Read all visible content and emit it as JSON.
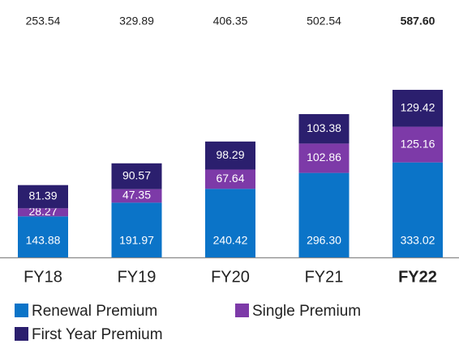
{
  "chart_data": {
    "type": "stacked_bar",
    "categories": [
      "FY18",
      "FY19",
      "FY20",
      "FY21",
      "FY22"
    ],
    "series": [
      {
        "name": "Renewal Premium",
        "color": "#0b74c8",
        "values": [
          143.88,
          191.97,
          240.42,
          296.3,
          333.02
        ],
        "value_labels": [
          "143.88",
          "191.97",
          "240.42",
          "296.30",
          "333.02"
        ]
      },
      {
        "name": "Single Premium",
        "color": "#7d3aa8",
        "values": [
          28.27,
          47.35,
          67.64,
          102.86,
          125.16
        ],
        "value_labels": [
          "28.27",
          "47.35",
          "67.64",
          "102.86",
          "125.16"
        ]
      },
      {
        "name": "First Year Premium",
        "color": "#2b1f6e",
        "values": [
          81.39,
          90.57,
          98.29,
          103.38,
          129.42
        ],
        "value_labels": [
          "81.39",
          "90.57",
          "98.29",
          "103.38",
          "129.42"
        ]
      }
    ],
    "totals": {
      "values": [
        253.54,
        329.89,
        406.35,
        502.54,
        587.6
      ],
      "value_labels": [
        "253.54",
        "329.89",
        "406.35",
        "502.54",
        "587.60"
      ]
    }
  }
}
